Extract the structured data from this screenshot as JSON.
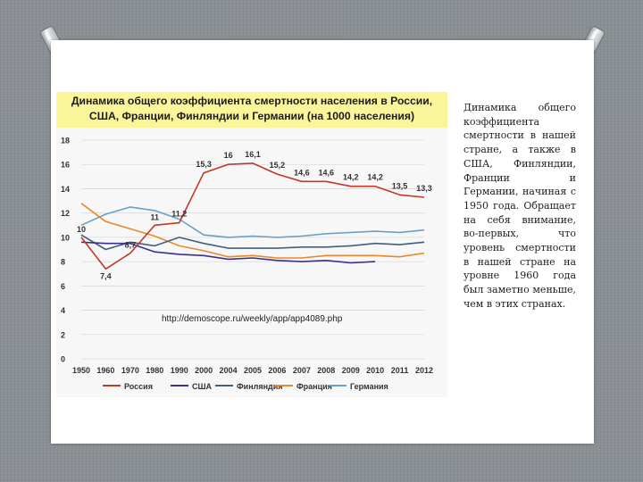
{
  "slide": {
    "description_text": "Динамика общего коэффициента смертности в нашей стране, а также в США, Финляндии, Франции и Германии, начиная с 1950 года. Обращает на себя внимание, во-первых, что уровень смертности в нашей стране на уровне 1960 года был заметно меньше, чем в этих странах."
  },
  "chart_data": {
    "type": "line",
    "title_line1": "Динамика общего коэффициента смертности населения в России,",
    "title_line2": "США, Франции, Финляндии и Германии (на 1000 населения)",
    "source": "http://demoscope.ru/weekly/app/app4089.php",
    "categories": [
      "1950",
      "1960",
      "1970",
      "1980",
      "1990",
      "2000",
      "2004",
      "2005",
      "2006",
      "2007",
      "2008",
      "2009",
      "2010",
      "2011",
      "2012"
    ],
    "yticks": [
      "0",
      "2",
      "4",
      "6",
      "8",
      "10",
      "12",
      "14",
      "16",
      "18"
    ],
    "ylim": [
      0,
      18
    ],
    "series": [
      {
        "name": "Россия",
        "color": "#c0392b",
        "values": [
          10,
          7.4,
          8.7,
          11,
          11.2,
          15.3,
          16,
          16.1,
          15.2,
          14.6,
          14.6,
          14.2,
          14.2,
          13.5,
          13.3
        ],
        "labels": [
          "10",
          "7,4",
          "8,7",
          "11",
          "11,2",
          "15,3",
          "16",
          "16,1",
          "15,2",
          "14,6",
          "14,6",
          "14,2",
          "14,2",
          "13,5",
          "13,3"
        ]
      },
      {
        "name": "США",
        "color": "#3b2f8f",
        "values": [
          9.6,
          9.5,
          9.5,
          8.8,
          8.6,
          8.5,
          8.2,
          8.3,
          8.1,
          8.0,
          8.1,
          7.9,
          8.0,
          null,
          null
        ]
      },
      {
        "name": "Финляндия",
        "color": "#445f7a",
        "values": [
          10.2,
          9.0,
          9.6,
          9.3,
          10.0,
          9.5,
          9.1,
          9.1,
          9.1,
          9.2,
          9.2,
          9.3,
          9.5,
          9.4,
          9.6
        ]
      },
      {
        "name": "Франция",
        "color": "#e8892b",
        "values": [
          12.8,
          11.3,
          10.7,
          10.1,
          9.3,
          8.9,
          8.4,
          8.5,
          8.3,
          8.3,
          8.5,
          8.5,
          8.5,
          8.4,
          8.7
        ]
      },
      {
        "name": "Германия",
        "color": "#6aa0c6",
        "values": [
          11.0,
          11.9,
          12.5,
          12.2,
          11.5,
          10.2,
          10.0,
          10.1,
          10.0,
          10.1,
          10.3,
          10.4,
          10.5,
          10.4,
          10.6
        ]
      }
    ]
  }
}
